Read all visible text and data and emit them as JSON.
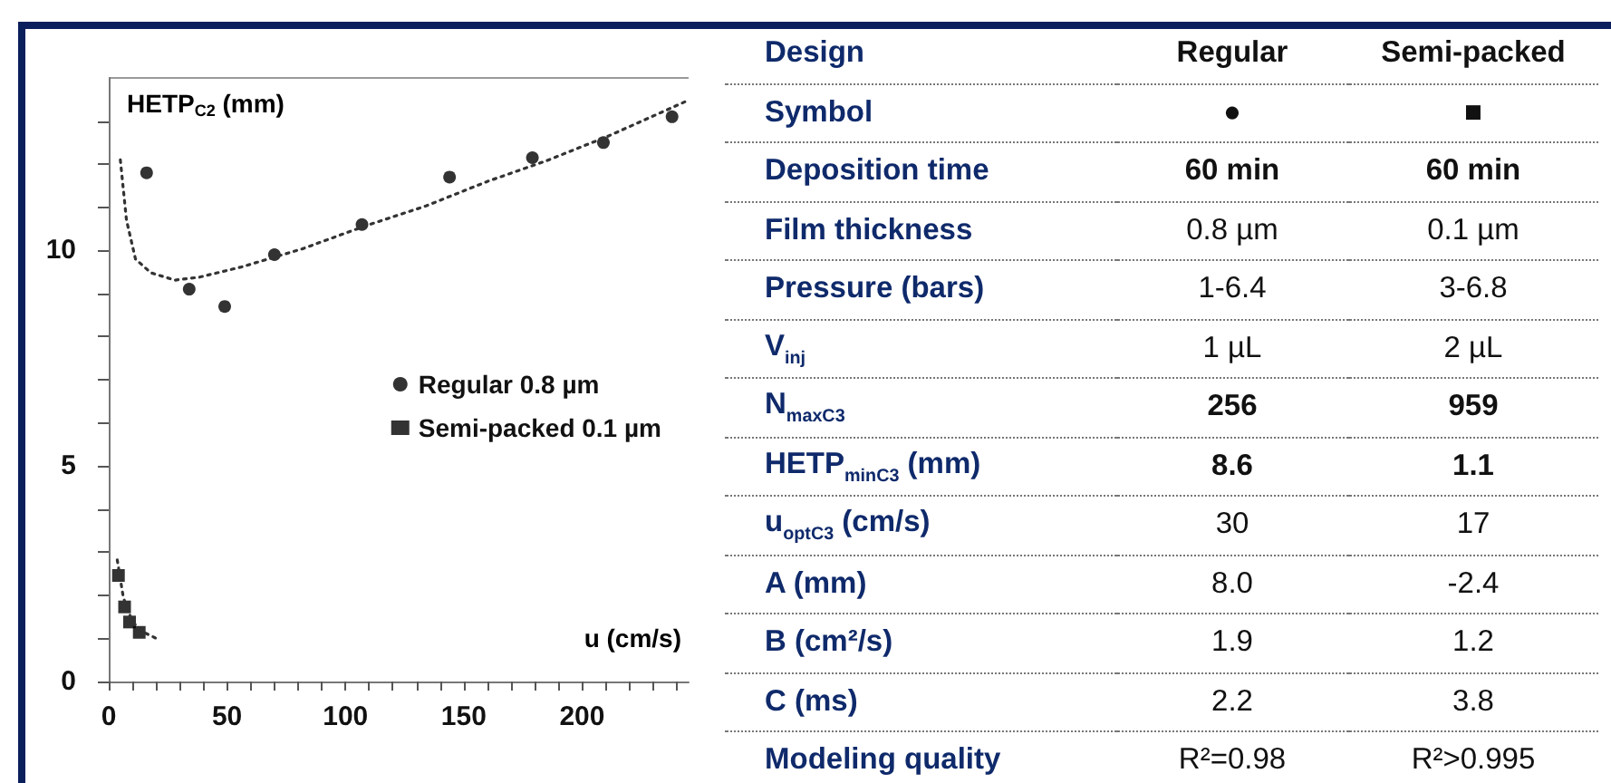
{
  "chart_data": [
    {
      "type": "scatter",
      "xlabel": "u (cm/s)",
      "ylabel": "HETP$_{C2}$ (mm)",
      "xlim": [
        0,
        245
      ],
      "ylim": [
        0,
        14
      ],
      "xticks": [
        0,
        {
          "value": 10,
          "label": null
        },
        {
          "value": 20,
          "label": null
        },
        {
          "value": 30,
          "label": null
        },
        {
          "value": 40,
          "label": null
        },
        50,
        {
          "value": 60,
          "label": null
        },
        {
          "value": 70,
          "label": null
        },
        {
          "value": 80,
          "label": null
        },
        {
          "value": 90,
          "label": null
        },
        100,
        {
          "value": 110,
          "label": null
        },
        {
          "value": 120,
          "label": null
        },
        {
          "value": 130,
          "label": null
        },
        {
          "value": 140,
          "label": null
        },
        150,
        {
          "value": 160,
          "label": null
        },
        {
          "value": 170,
          "label": null
        },
        {
          "value": 180,
          "label": null
        },
        {
          "value": 190,
          "label": null
        },
        200,
        {
          "value": 210,
          "label": null
        },
        {
          "value": 220,
          "label": null
        },
        {
          "value": 230,
          "label": null
        },
        {
          "value": 240,
          "label": null
        }
      ],
      "yticks": [
        0,
        {
          "value": 1,
          "label": null
        },
        {
          "value": 2,
          "label": null
        },
        {
          "value": 3,
          "label": null
        },
        {
          "value": 4,
          "label": null
        },
        5,
        {
          "value": 6,
          "label": null
        },
        {
          "value": 7,
          "label": null
        },
        {
          "value": 8,
          "label": null
        },
        {
          "value": 9,
          "label": null
        },
        10,
        {
          "value": 11,
          "label": null
        },
        {
          "value": 12,
          "label": null
        },
        {
          "value": 13,
          "label": null
        }
      ],
      "legend": "right",
      "series": [
        {
          "name": "Regular 0.8 µm",
          "type": "scatter",
          "marker": "circle",
          "color": "#000000",
          "x": [
            16,
            34,
            49,
            70,
            107,
            144,
            179,
            209,
            238
          ],
          "values": [
            11.8,
            9.1,
            8.7,
            9.9,
            10.6,
            11.7,
            12.15,
            12.5,
            13.1
          ]
        },
        {
          "name": "Semi-packed 0.1 µm",
          "type": "scatter",
          "marker": "square",
          "color": "#000000",
          "x": [
            4.1,
            6.7,
            8.8,
            12.9
          ],
          "values": [
            2.46,
            1.73,
            1.38,
            1.14
          ]
        },
        {
          "type": "line",
          "marker": "none",
          "line_style": "dotted",
          "color": "#333333",
          "x": [
            4.9,
            7.5,
            11.3,
            17.8,
            28,
            38.4,
            56.4,
            82,
            108,
            134,
            160,
            185,
            211,
            244
          ],
          "values": [
            12.1,
            10.7,
            9.8,
            9.48,
            9.31,
            9.38,
            9.62,
            10.04,
            10.56,
            11.03,
            11.6,
            12.08,
            12.65,
            13.46
          ]
        },
        {
          "type": "line",
          "marker": "none",
          "line_style": "dotted",
          "color": "#333333",
          "x": [
            3.6,
            6.2,
            10,
            15.2,
            21.6
          ],
          "values": [
            2.82,
            1.94,
            1.38,
            1.13,
            0.96
          ]
        }
      ]
    },
    {
      "type": "other",
      "annotations": [
        "Design",
        "Regular",
        "Semi-packed",
        "Symbol",
        "●",
        "■",
        "Deposition time",
        "60 min",
        "60 min",
        "Film thickness",
        "0.8 µm",
        "0.1 µm",
        "Pressure (bars)",
        "1-6.4",
        "3-6.8",
        "V$_{inj}$",
        "1 µL",
        "2 µL",
        "N$_{maxC3}$",
        "256",
        "959",
        "HETP$_{minC3}$ (mm)",
        "8.6",
        "1.1",
        "u$_{optC3}$ (cm/s)",
        "30",
        "17",
        "A (mm)",
        "8.0",
        "-2.4",
        "B (cm²/s)",
        "1.9",
        "1.2",
        "C (ms)",
        "2.2",
        "3.8",
        "Modeling quality",
        "R²=0.98",
        "R²>0.995"
      ]
    }
  ]
}
